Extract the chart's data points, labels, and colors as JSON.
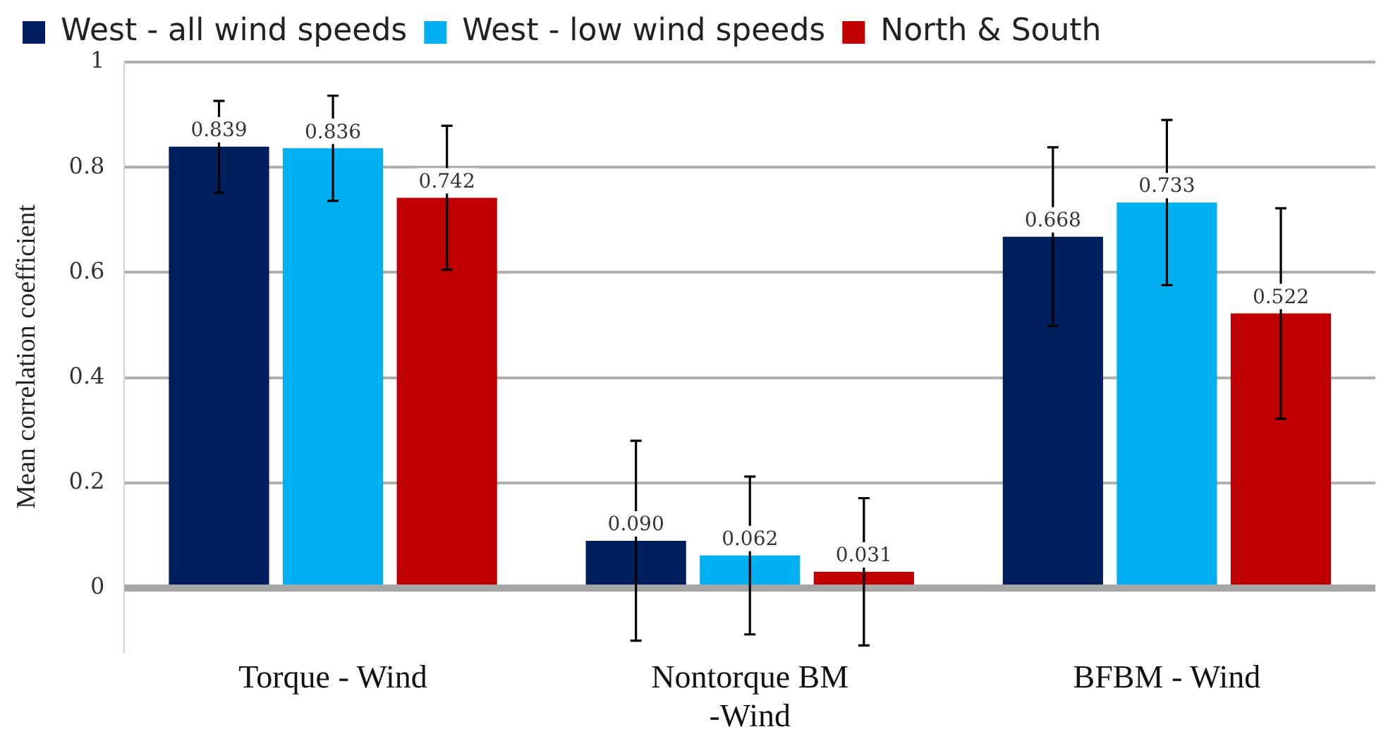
{
  "chart_data": {
    "type": "bar",
    "ylabel": "Mean correlation coefficient",
    "categories": [
      "Torque - Wind",
      "Nontorque BM -Wind",
      "BFBM - Wind"
    ],
    "series": [
      {
        "name": "West - all wind speeds",
        "color": "#001f5f",
        "values": [
          0.839,
          0.09,
          0.668
        ],
        "errors": [
          0.087,
          0.19,
          0.17
        ],
        "value_labels": [
          "0.839",
          "0.090",
          "0.668"
        ]
      },
      {
        "name": "West - low wind speeds",
        "color": "#00b0f0",
        "values": [
          0.836,
          0.062,
          0.733
        ],
        "errors": [
          0.1,
          0.15,
          0.157
        ],
        "value_labels": [
          "0.836",
          "0.062",
          "0.733"
        ]
      },
      {
        "name": "North & South",
        "color": "#c00000",
        "values": [
          0.742,
          0.031,
          0.522
        ],
        "errors": [
          0.137,
          0.14,
          0.2
        ],
        "value_labels": [
          "0.742",
          "0.031",
          "0.522"
        ]
      }
    ],
    "ylim": [
      -0.12,
      1
    ],
    "yticks": [
      0,
      0.2,
      0.4,
      0.6,
      0.8,
      1
    ],
    "grid": "y",
    "legend": "top"
  }
}
